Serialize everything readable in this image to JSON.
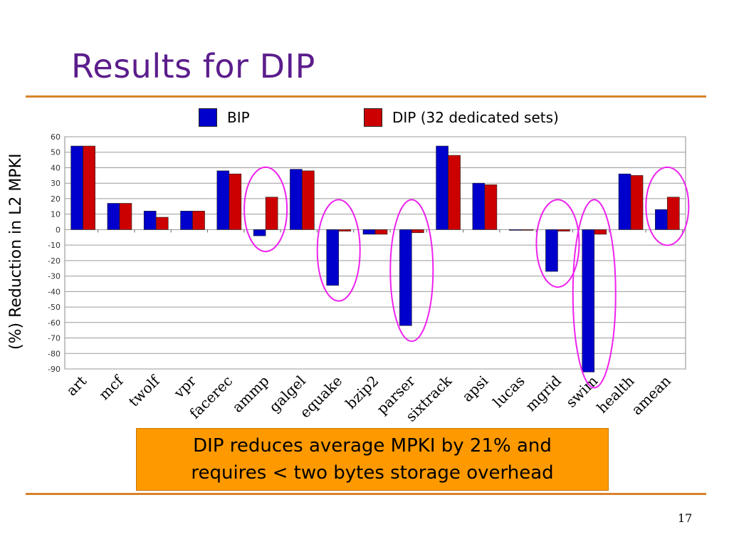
{
  "slide": {
    "title": "Results for DIP",
    "callout_line1": "DIP reduces average MPKI by 21% and",
    "callout_line2": "requires < two bytes storage overhead",
    "page_number": "17"
  },
  "colors": {
    "bip": "#0000cc",
    "dip": "#cc0000",
    "highlight": "#ee22ee",
    "rule": "#d9822b",
    "callout": "#ff9900",
    "title": "#5b1d8c"
  },
  "chart_data": {
    "type": "bar",
    "title": "",
    "xlabel": "",
    "ylabel": "(%) Reduction in L2 MPKI",
    "ylim": [
      -90,
      60
    ],
    "yticks": [
      60,
      50,
      40,
      30,
      20,
      10,
      0,
      -10,
      -20,
      -30,
      -40,
      -50,
      -60,
      -70,
      -80,
      -90
    ],
    "grid": true,
    "legend_position": "top",
    "categories": [
      "art",
      "mcf",
      "twolf",
      "vpr",
      "facerec",
      "ammp",
      "galgel",
      "equake",
      "bzip2",
      "parser",
      "sixtrack",
      "apsi",
      "lucas",
      "mgrid",
      "swim",
      "health",
      "amean"
    ],
    "series": [
      {
        "name": "BIP",
        "values": [
          54,
          17,
          12,
          12,
          38,
          -4,
          39,
          -36,
          -3,
          -62,
          54,
          30,
          0,
          -27,
          -92,
          36,
          13
        ]
      },
      {
        "name": "DIP (32 dedicated sets)",
        "values": [
          54,
          17,
          8,
          12,
          36,
          21,
          38,
          -1,
          -3,
          -2,
          48,
          29,
          0,
          -1,
          -3,
          35,
          21
        ]
      }
    ],
    "highlighted_categories": [
      "ammp",
      "equake",
      "parser",
      "mgrid",
      "swim",
      "amean"
    ]
  }
}
